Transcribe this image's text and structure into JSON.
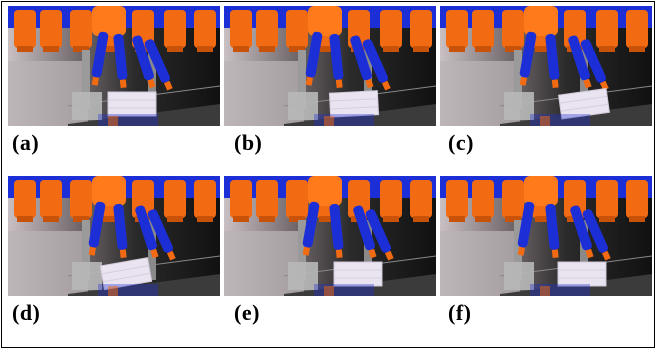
{
  "figure": {
    "panels": [
      {
        "label": "(a)",
        "box_tilt": 0,
        "box_shift": 0,
        "finger_spread": 0
      },
      {
        "label": "(b)",
        "box_tilt": -3,
        "box_shift": 6,
        "finger_spread": 2
      },
      {
        "label": "(c)",
        "box_tilt": -8,
        "box_shift": 20,
        "finger_spread": 4
      },
      {
        "label": "(d)",
        "box_tilt": -10,
        "box_shift": -6,
        "finger_spread": 3
      },
      {
        "label": "(e)",
        "box_tilt": 0,
        "box_shift": 10,
        "finger_spread": 5
      },
      {
        "label": "(f)",
        "box_tilt": 0,
        "box_shift": 18,
        "finger_spread": 6
      }
    ],
    "colors": {
      "orange": "#f26a12",
      "blue": "#1c2fd6",
      "dark": "#202020",
      "box": "#e9e4ef",
      "glass": "#b9b3b6"
    }
  }
}
